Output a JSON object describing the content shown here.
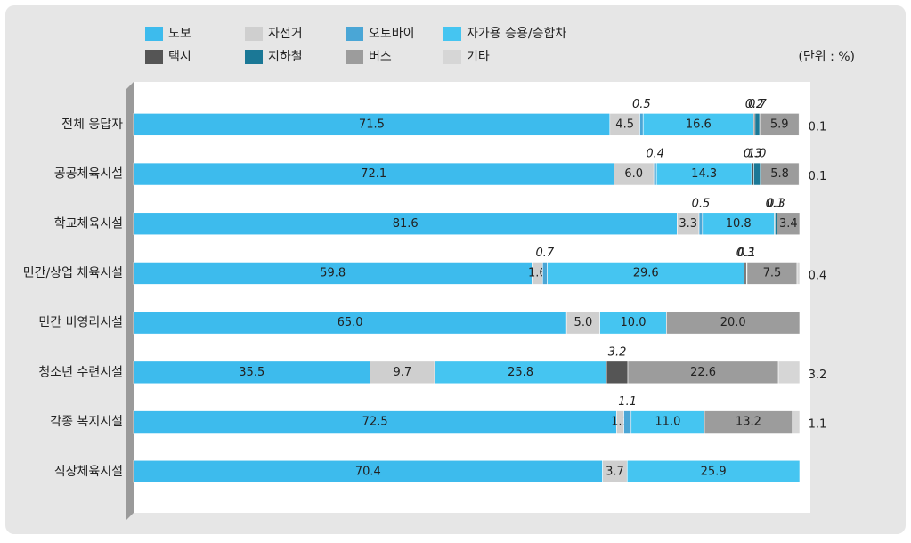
{
  "chart_data": {
    "type": "bar",
    "horizontal": true,
    "stacked": true,
    "unit_label": "(단위 : %)",
    "categories": [
      "전체 응답자",
      "공공체육시설",
      "학교체육시설",
      "민간/상업 체육시설",
      "민간 비영리시설",
      "청소년 수련시설",
      "각종 복지시설",
      "직장체육시설"
    ],
    "xlim": [
      0,
      100
    ],
    "series": [
      {
        "name": "도보",
        "color": "#3dbbed",
        "values": [
          71.5,
          72.1,
          81.6,
          59.8,
          65.0,
          35.5,
          72.5,
          70.4
        ],
        "value_labels": [
          "71.5",
          "72.1",
          "81.6",
          "59.8",
          "65.0",
          "35.5",
          "72.5",
          "70.4"
        ]
      },
      {
        "name": "자전거",
        "color": "#cfcfcf",
        "values": [
          4.5,
          6.0,
          3.3,
          1.6,
          5.0,
          9.7,
          1.1,
          3.7
        ],
        "value_labels": [
          "4.5",
          "6.0",
          "3.3",
          "1.6",
          "5.0",
          "9.7",
          "1.1",
          "3.7"
        ]
      },
      {
        "name": "오토바이",
        "color": "#4aa6d6",
        "values": [
          0.5,
          0.4,
          0.5,
          0.7,
          null,
          null,
          1.1,
          null
        ],
        "value_labels": [
          "0.5",
          "0.4",
          "0.5",
          "0.7",
          null,
          null,
          "1.1",
          null
        ]
      },
      {
        "name": "자가용 승용/승합차",
        "color": "#45c5f1",
        "values": [
          16.6,
          14.3,
          10.8,
          29.6,
          10.0,
          25.8,
          11.0,
          25.9
        ],
        "value_labels": [
          "16.6",
          "14.3",
          "10.8",
          "29.6",
          "10.0",
          "25.8",
          "11.0",
          "25.9"
        ]
      },
      {
        "name": "택시",
        "color": "#555555",
        "values": [
          0.2,
          0.3,
          0.1,
          0.3,
          null,
          3.2,
          null,
          null
        ],
        "value_labels": [
          "0.2",
          "0.3",
          "0.1",
          "0.3",
          null,
          "3.2",
          null,
          null
        ]
      },
      {
        "name": "지하철",
        "color": "#1b7896",
        "values": [
          0.7,
          1.0,
          0.3,
          0.1,
          null,
          null,
          null,
          null
        ],
        "value_labels": [
          "0.7",
          "1.0",
          "0.3",
          "0.1",
          null,
          null,
          null,
          null
        ]
      },
      {
        "name": "버스",
        "color": "#9c9c9c",
        "values": [
          5.9,
          5.8,
          3.4,
          7.5,
          20.0,
          22.6,
          13.2,
          null
        ],
        "value_labels": [
          "5.9",
          "5.8",
          "3.4",
          "7.5",
          "20.0",
          "22.6",
          "13.2",
          null
        ]
      },
      {
        "name": "기타",
        "color": "#d6d6d6",
        "values": [
          0.1,
          0.1,
          null,
          0.4,
          null,
          3.2,
          1.1,
          null
        ],
        "value_labels": [
          "0.1",
          "0.1",
          null,
          "0.4",
          null,
          "3.2",
          "1.1",
          null
        ]
      }
    ]
  }
}
